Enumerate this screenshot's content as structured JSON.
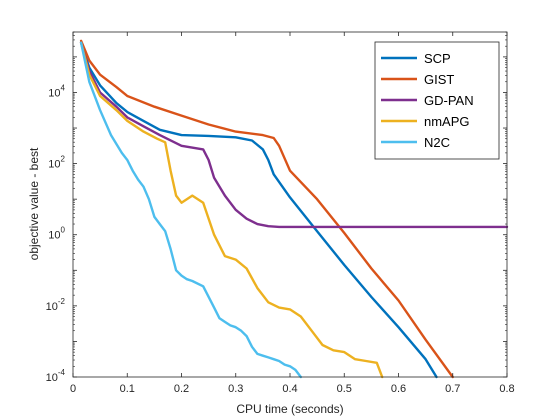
{
  "chart_data": {
    "type": "line",
    "title": "",
    "xlabel": "CPU time (seconds)",
    "ylabel": "objective value - best",
    "xlim": [
      0,
      0.8
    ],
    "ylim_exp": [
      -4,
      5.7
    ],
    "y_scale": "log",
    "x_ticks": [
      "0",
      "0.1",
      "0.2",
      "0.3",
      "0.4",
      "0.5",
      "0.6",
      "0.7",
      "0.8"
    ],
    "y_ticks": [
      {
        "base": "10",
        "exp": "-4",
        "value_exp": -4
      },
      {
        "base": "10",
        "exp": "-2",
        "value_exp": -2
      },
      {
        "base": "10",
        "exp": "0",
        "value_exp": 0
      },
      {
        "base": "10",
        "exp": "2",
        "value_exp": 2
      },
      {
        "base": "10",
        "exp": "4",
        "value_exp": 4
      }
    ],
    "grid": false,
    "legend_position": "top-right",
    "series": [
      {
        "name": "SCP",
        "color": "#0072BD",
        "x": [
          0.015,
          0.03,
          0.05,
          0.08,
          0.1,
          0.13,
          0.16,
          0.2,
          0.25,
          0.3,
          0.33,
          0.35,
          0.36,
          0.37,
          0.4,
          0.45,
          0.5,
          0.55,
          0.6,
          0.65,
          0.67
        ],
        "y_log10": [
          5.4,
          4.7,
          4.2,
          3.7,
          3.45,
          3.2,
          2.95,
          2.8,
          2.78,
          2.74,
          2.65,
          2.4,
          2.1,
          1.7,
          1.05,
          0.1,
          -0.85,
          -1.75,
          -2.6,
          -3.5,
          -4.0
        ]
      },
      {
        "name": "GIST",
        "color": "#D95319",
        "x": [
          0.015,
          0.03,
          0.05,
          0.08,
          0.1,
          0.15,
          0.2,
          0.25,
          0.3,
          0.35,
          0.37,
          0.38,
          0.4,
          0.45,
          0.5,
          0.55,
          0.6,
          0.65,
          0.7
        ],
        "y_log10": [
          5.45,
          4.9,
          4.5,
          4.15,
          3.9,
          3.6,
          3.35,
          3.1,
          2.9,
          2.8,
          2.72,
          2.5,
          1.8,
          1.0,
          0.05,
          -0.95,
          -1.85,
          -2.95,
          -4.0
        ]
      },
      {
        "name": "GD-PAN",
        "color": "#7E2F8E",
        "x": [
          0.015,
          0.03,
          0.05,
          0.08,
          0.1,
          0.13,
          0.16,
          0.2,
          0.24,
          0.25,
          0.26,
          0.28,
          0.3,
          0.32,
          0.34,
          0.36,
          0.38,
          0.4,
          0.5,
          0.6,
          0.7,
          0.8
        ],
        "y_log10": [
          5.4,
          4.6,
          4.0,
          3.6,
          3.3,
          3.05,
          2.8,
          2.5,
          2.4,
          2.1,
          1.6,
          1.1,
          0.7,
          0.45,
          0.3,
          0.24,
          0.22,
          0.22,
          0.22,
          0.22,
          0.22,
          0.22
        ]
      },
      {
        "name": "nmAPG",
        "color": "#EDB120",
        "x": [
          0.015,
          0.03,
          0.05,
          0.08,
          0.1,
          0.13,
          0.155,
          0.17,
          0.18,
          0.19,
          0.2,
          0.22,
          0.24,
          0.26,
          0.28,
          0.3,
          0.32,
          0.34,
          0.36,
          0.38,
          0.4,
          0.42,
          0.44,
          0.46,
          0.48,
          0.5,
          0.52,
          0.54,
          0.56,
          0.57
        ],
        "y_log10": [
          5.4,
          4.5,
          3.9,
          3.5,
          3.2,
          2.9,
          2.7,
          2.6,
          1.8,
          1.1,
          0.9,
          1.1,
          0.9,
          0.0,
          -0.6,
          -0.7,
          -0.95,
          -1.5,
          -1.9,
          -2.05,
          -2.1,
          -2.3,
          -2.7,
          -3.1,
          -3.25,
          -3.3,
          -3.5,
          -3.55,
          -3.6,
          -4.0
        ]
      },
      {
        "name": "N2C",
        "color": "#4DBEEE",
        "x": [
          0.015,
          0.03,
          0.05,
          0.07,
          0.09,
          0.1,
          0.11,
          0.12,
          0.13,
          0.14,
          0.15,
          0.16,
          0.17,
          0.18,
          0.19,
          0.2,
          0.21,
          0.22,
          0.24,
          0.26,
          0.27,
          0.28,
          0.29,
          0.3,
          0.31,
          0.32,
          0.33,
          0.34,
          0.35,
          0.36,
          0.37,
          0.38,
          0.39,
          0.4,
          0.41,
          0.42
        ],
        "y_log10": [
          5.4,
          4.3,
          3.5,
          2.8,
          2.3,
          2.1,
          1.8,
          1.55,
          1.35,
          1.0,
          0.5,
          0.3,
          0.1,
          -0.4,
          -1.0,
          -1.15,
          -1.25,
          -1.3,
          -1.45,
          -2.05,
          -2.35,
          -2.45,
          -2.55,
          -2.6,
          -2.7,
          -2.85,
          -3.15,
          -3.35,
          -3.4,
          -3.45,
          -3.5,
          -3.55,
          -3.65,
          -3.7,
          -3.8,
          -4.0
        ]
      }
    ]
  }
}
